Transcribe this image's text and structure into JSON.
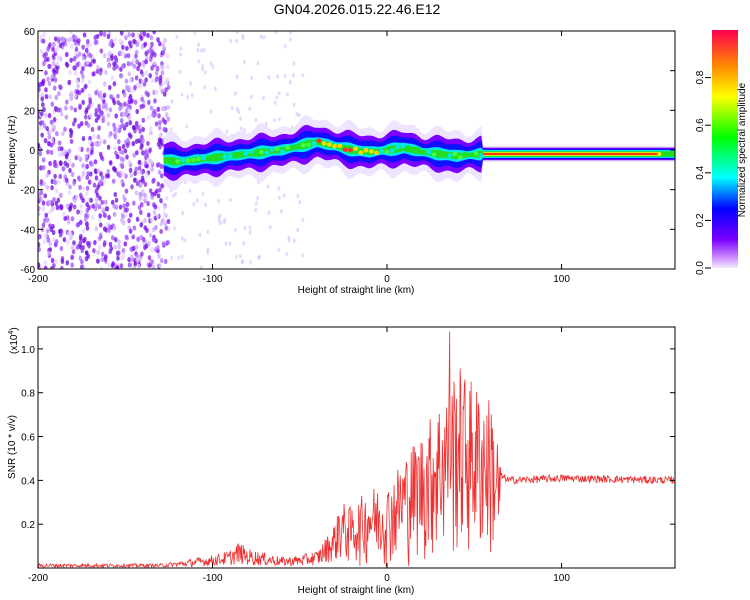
{
  "title": "GN04.2026.015.22.46.E12",
  "chart_data": [
    {
      "type": "heatmap",
      "xlabel": "Height of straight line (km)",
      "ylabel": "Frequency (Hz)",
      "xlim": [
        -200,
        165
      ],
      "ylim": [
        -60,
        60
      ],
      "xticks": [
        -200,
        -100,
        0,
        100
      ],
      "yticks": [
        -60,
        -40,
        -20,
        0,
        20,
        40,
        60
      ],
      "colorbar": {
        "label": "Normalized spectral amplitude",
        "range": [
          0,
          1
        ],
        "ticks": [
          0.0,
          0.2,
          0.4,
          0.6,
          0.8
        ]
      },
      "ridge": {
        "x": [
          -128,
          -120,
          -110,
          -100,
          -90,
          -80,
          -70,
          -60,
          -50,
          -40,
          -30,
          -20,
          -10,
          0,
          10,
          20,
          30,
          40,
          55,
          80,
          120,
          165
        ],
        "y": [
          -5,
          -6,
          -5,
          -4,
          -3,
          -2,
          -1,
          0,
          2,
          4,
          2,
          0,
          -1,
          0,
          1,
          -1,
          -2,
          -3,
          -2,
          -2,
          -2,
          -2
        ]
      },
      "noise_region": [
        -200,
        -128
      ]
    },
    {
      "type": "line",
      "xlabel": "Height of straight line (km)",
      "ylabel": "SNR (10 * v/v)",
      "yscale_label": "(x10",
      "yscale_exp": "4",
      "yscale_close": ")",
      "xlim": [
        -200,
        165
      ],
      "ylim": [
        0,
        1.1
      ],
      "xticks": [
        -200,
        -100,
        0,
        100
      ],
      "yticks": [
        0.2,
        0.4,
        0.6,
        0.8,
        1.0
      ],
      "yticklabels": [
        "0.2",
        "0.4",
        "0.6",
        "0.8",
        "1.0"
      ],
      "series_color": "#ee3030",
      "envelope": {
        "x": [
          -200,
          -130,
          -120,
          -100,
          -90,
          -85,
          -80,
          -70,
          -60,
          -50,
          -40,
          -32,
          -28,
          -20,
          -10,
          0,
          10,
          20,
          30,
          40,
          50,
          60,
          65,
          70,
          100,
          165
        ],
        "y": [
          0.02,
          0.02,
          0.03,
          0.06,
          0.08,
          0.12,
          0.09,
          0.07,
          0.05,
          0.06,
          0.08,
          0.18,
          0.25,
          0.22,
          0.3,
          0.3,
          0.42,
          0.5,
          0.62,
          0.75,
          0.68,
          0.62,
          0.42,
          0.4,
          0.41,
          0.4
        ]
      },
      "peak": {
        "x": 36,
        "y": 1.08
      }
    }
  ]
}
